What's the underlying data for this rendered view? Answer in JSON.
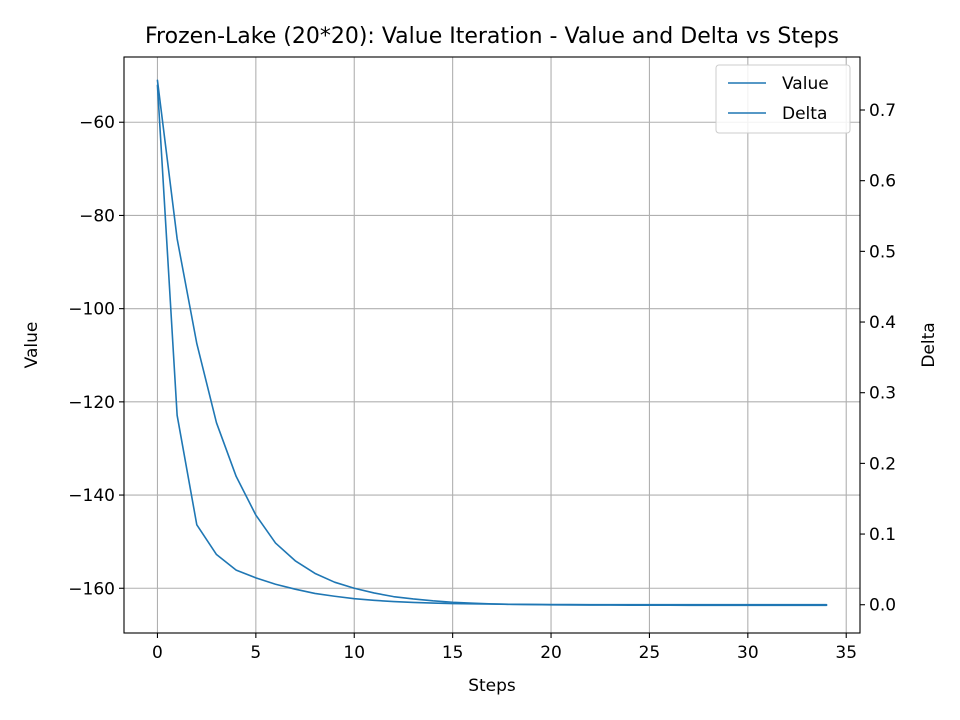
{
  "chart_data": {
    "type": "line",
    "title": "Frozen-Lake (20*20): Value Iteration - Value and Delta vs Steps",
    "xlabel": "Steps",
    "ylabel_left": "Value",
    "ylabel_right": "Delta",
    "xlim": [
      -1.7,
      35.7
    ],
    "ylim_left": [
      -169.6,
      -46.0
    ],
    "ylim_right": [
      -0.04,
      0.775
    ],
    "xticks": [
      0,
      5,
      10,
      15,
      20,
      25,
      30,
      35
    ],
    "yticks_left": [
      -60,
      -80,
      -100,
      -120,
      -140,
      -160
    ],
    "yticks_left_labels": [
      "−60",
      "−80",
      "−100",
      "−120",
      "−140",
      "−160"
    ],
    "yticks_right": [
      0.0,
      0.1,
      0.2,
      0.3,
      0.4,
      0.5,
      0.6,
      0.7
    ],
    "yticks_right_labels": [
      "0.0",
      "0.1",
      "0.2",
      "0.3",
      "0.4",
      "0.5",
      "0.6",
      "0.7"
    ],
    "grid": true,
    "legend": "top-right",
    "series": [
      {
        "name": "Value",
        "axis": "left",
        "color": "#1f77b4",
        "x": [
          0,
          1,
          2,
          3,
          4,
          5,
          6,
          7,
          8,
          9,
          10,
          11,
          12,
          13,
          14,
          15,
          16,
          17,
          18,
          19,
          20,
          21,
          22,
          23,
          24,
          25,
          26,
          27,
          28,
          29,
          30,
          31,
          32,
          33,
          34
        ],
        "values": [
          -51.0,
          -85.0,
          -107.5,
          -124.5,
          -136.0,
          -144.3,
          -150.3,
          -154.1,
          -156.8,
          -158.7,
          -160.0,
          -161.0,
          -161.8,
          -162.3,
          -162.7,
          -163.0,
          -163.2,
          -163.35,
          -163.45,
          -163.5,
          -163.55,
          -163.58,
          -163.6,
          -163.62,
          -163.63,
          -163.64,
          -163.64,
          -163.65,
          -163.65,
          -163.65,
          -163.65,
          -163.65,
          -163.65,
          -163.65,
          -163.65
        ]
      },
      {
        "name": "Delta",
        "axis": "right",
        "color": "#1f77b4",
        "x": [
          0,
          1,
          2,
          3,
          4,
          5,
          6,
          7,
          8,
          9,
          10,
          11,
          12,
          13,
          14,
          15,
          16,
          17,
          18,
          19,
          20,
          21,
          22,
          23,
          24,
          25,
          26,
          27,
          28,
          29,
          30,
          31,
          32,
          33,
          34
        ],
        "values": [
          0.735,
          0.268,
          0.113,
          0.071,
          0.049,
          0.038,
          0.029,
          0.022,
          0.016,
          0.012,
          0.0085,
          0.0062,
          0.0045,
          0.0033,
          0.0024,
          0.0017,
          0.0012,
          0.0009,
          0.0006,
          0.0004,
          0.0003,
          0.0002,
          0.00015,
          0.0001,
          8e-05,
          5e-05,
          4e-05,
          3e-05,
          2e-05,
          1e-05,
          1e-05,
          0.0,
          0.0,
          0.0,
          0.0
        ]
      }
    ]
  }
}
